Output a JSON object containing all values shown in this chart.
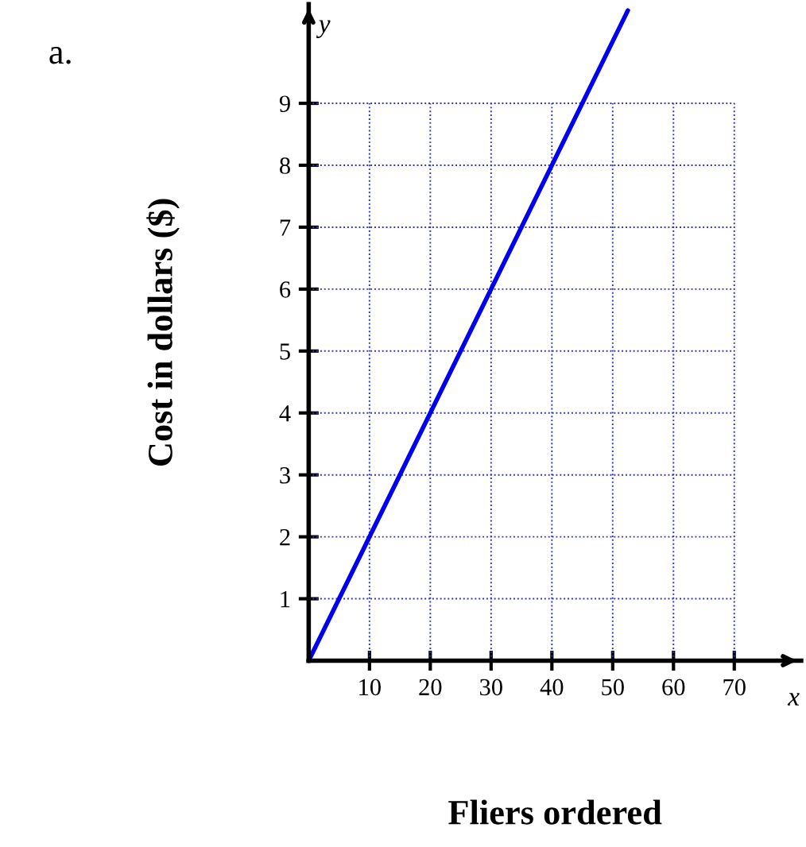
{
  "chart_data": {
    "type": "line",
    "xlabel": "Fliers ordered",
    "ylabel": "Cost in dollars ($)",
    "annotations": [
      "a.",
      "y",
      "x"
    ],
    "x": [
      0,
      52.5
    ],
    "series": [
      {
        "color": "#0000ee",
        "values": [
          0,
          10.5
        ]
      }
    ],
    "xlim": [
      0,
      81
    ],
    "ylim": [
      0,
      10.6
    ],
    "xticks": [
      10,
      20,
      30,
      40,
      50,
      60,
      70
    ],
    "yticks": [
      1,
      2,
      3,
      4,
      5,
      6,
      7,
      8,
      9
    ],
    "grid": true,
    "marker": "none",
    "line_style": "solid"
  }
}
